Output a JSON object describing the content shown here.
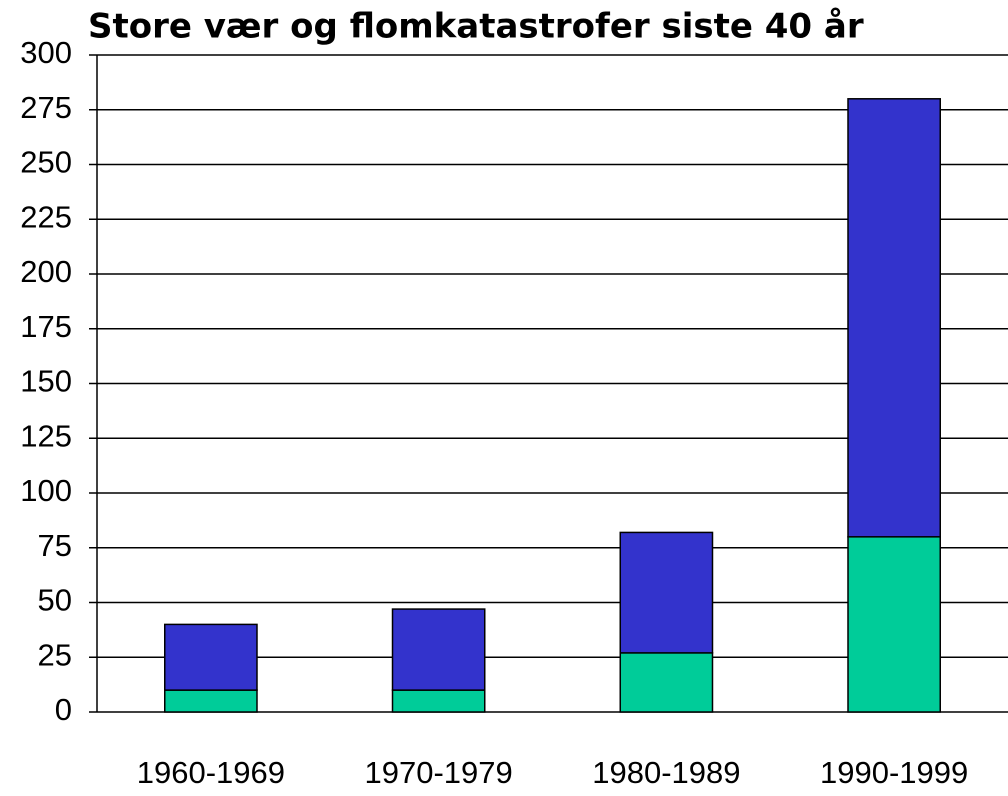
{
  "chart_data": {
    "type": "stacked_bar",
    "title": "Store vær og flomkatastrofer siste 40 år",
    "categories": [
      "1960-1969",
      "1970-1979",
      "1980-1989",
      "1990-1999"
    ],
    "series": [
      {
        "color": "#00cc99",
        "values": [
          10,
          10,
          27,
          80
        ]
      },
      {
        "color": "#3333cc",
        "values": [
          30,
          37,
          55,
          200
        ]
      }
    ],
    "ylim": [
      0,
      300
    ],
    "yticks": [
      0,
      25,
      50,
      75,
      100,
      125,
      150,
      175,
      200,
      225,
      250,
      275,
      300
    ],
    "grid": true
  }
}
